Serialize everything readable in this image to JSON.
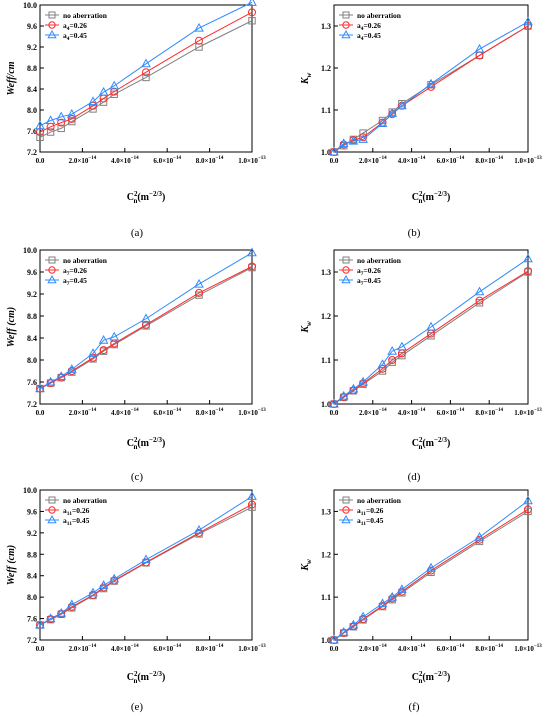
{
  "colors": {
    "no_aberration": "#808080",
    "a026": "#ff2a2a",
    "a045": "#2f8bff",
    "axis": "#000000"
  },
  "chart_data": [
    {
      "type": "line",
      "caption": "(a)",
      "xlabel": "C",
      "xlabel_sup": "2",
      "xlabel_sub": "n",
      "xlabel_unit": "(m",
      "xlabel_unit_sup": "−2/3",
      "xlabel_unit_end": ")",
      "ylabel": "Weff/cm",
      "ylabel_italic": true,
      "xlim": [
        0,
        1e-13
      ],
      "ylim": [
        7.2,
        10.0
      ],
      "xticks": [
        0,
        2e-14,
        4e-14,
        6e-14,
        8e-14,
        1e-13
      ],
      "xticklabels": [
        "0.0",
        "2.0×10",
        "4.0×10",
        "6.0×10",
        "8.0×10",
        "1.0×10"
      ],
      "xtick_exps": [
        "",
        "−14",
        "−14",
        "−14",
        "−14",
        "−13"
      ],
      "yticks": [
        7.2,
        7.6,
        8.0,
        8.4,
        8.8,
        9.2,
        9.6,
        10.0
      ],
      "yticklabels": [
        "7.2",
        "7.6",
        "8.0",
        "8.4",
        "8.8",
        "9.2",
        "9.6",
        "10.0"
      ],
      "x": [
        0,
        5e-15,
        1e-14,
        1.5e-14,
        2.5e-14,
        3e-14,
        3.5e-14,
        5e-14,
        7.5e-14,
        1e-13
      ],
      "legend_pos": "top-left",
      "series": [
        {
          "name": "no aberration",
          "name_sub": "",
          "name_tail": "",
          "marker": "square",
          "color_key": "no_aberration",
          "values": [
            7.48,
            7.58,
            7.65,
            7.78,
            8.02,
            8.15,
            8.3,
            8.62,
            9.2,
            9.7
          ]
        },
        {
          "name": "a",
          "name_sub": "4",
          "name_tail": "=0.26",
          "marker": "circle",
          "color_key": "a026",
          "values": [
            7.58,
            7.68,
            7.76,
            7.83,
            8.08,
            8.22,
            8.35,
            8.72,
            9.32,
            9.86
          ]
        },
        {
          "name": "a",
          "name_sub": "4",
          "name_tail": "=0.45",
          "marker": "triangle",
          "color_key": "a045",
          "values": [
            7.7,
            7.8,
            7.87,
            7.92,
            8.16,
            8.34,
            8.46,
            8.88,
            9.56,
            10.05
          ]
        }
      ]
    },
    {
      "type": "line",
      "caption": "(b)",
      "xlabel": "C",
      "xlabel_sup": "2",
      "xlabel_sub": "n",
      "xlabel_unit": "(m",
      "xlabel_unit_sup": "−2/3",
      "xlabel_unit_end": ")",
      "ylabel": "K",
      "ylabel_sub": "w",
      "ylabel_italic": true,
      "xlim": [
        0,
        1e-13
      ],
      "ylim": [
        1.0,
        1.35
      ],
      "xticks": [
        0,
        2e-14,
        4e-14,
        6e-14,
        8e-14,
        1e-13
      ],
      "xticklabels": [
        "0.0",
        "2.0×10",
        "4.0×10",
        "6.0×10",
        "8.0×10",
        "1.0×10"
      ],
      "xtick_exps": [
        "",
        "−14",
        "−14",
        "−14",
        "−14",
        "−13"
      ],
      "yticks": [
        1.0,
        1.1,
        1.2,
        1.3
      ],
      "yticklabels": [
        "1.0",
        "1.1",
        "1.2",
        "1.3"
      ],
      "x": [
        0,
        5e-15,
        1e-14,
        1.5e-14,
        2.5e-14,
        3e-14,
        3.5e-14,
        5e-14,
        7.5e-14,
        1e-13
      ],
      "legend_pos": "top-left",
      "series": [
        {
          "name": "no aberration",
          "name_sub": "",
          "name_tail": "",
          "marker": "square",
          "color_key": "no_aberration",
          "values": [
            1.0,
            1.015,
            1.03,
            1.045,
            1.075,
            1.095,
            1.115,
            1.16,
            1.23,
            1.3
          ]
        },
        {
          "name": "a",
          "name_sub": "4",
          "name_tail": "=0.26",
          "marker": "circle",
          "color_key": "a026",
          "values": [
            1.0,
            1.018,
            1.028,
            1.035,
            1.07,
            1.09,
            1.11,
            1.155,
            1.23,
            1.3
          ]
        },
        {
          "name": "a",
          "name_sub": "4",
          "name_tail": "=0.45",
          "marker": "triangle",
          "color_key": "a045",
          "values": [
            1.0,
            1.02,
            1.026,
            1.03,
            1.068,
            1.092,
            1.11,
            1.162,
            1.245,
            1.31
          ]
        }
      ]
    },
    {
      "type": "line",
      "caption": "(c)",
      "xlabel": "C",
      "xlabel_sup": "2",
      "xlabel_sub": "n",
      "xlabel_unit": "(m",
      "xlabel_unit_sup": "−2/3",
      "xlabel_unit_end": ")",
      "ylabel": "Weff (cm)",
      "ylabel_italic": true,
      "xlim": [
        0,
        1e-13
      ],
      "ylim": [
        7.2,
        10.0
      ],
      "xticks": [
        0,
        2e-14,
        4e-14,
        6e-14,
        8e-14,
        1e-13
      ],
      "xticklabels": [
        "0.0",
        "2.0×10",
        "4.0×10",
        "6.0×10",
        "8.0×10",
        "1.0×10"
      ],
      "xtick_exps": [
        "",
        "−14",
        "−14",
        "−14",
        "−14",
        "−13"
      ],
      "yticks": [
        7.2,
        7.6,
        8.0,
        8.4,
        8.8,
        9.2,
        9.6,
        10.0
      ],
      "yticklabels": [
        "7.2",
        "7.6",
        "8.0",
        "8.4",
        "8.8",
        "9.2",
        "9.6",
        "10.0"
      ],
      "x": [
        0,
        5e-15,
        1e-14,
        1.5e-14,
        2.5e-14,
        3e-14,
        3.5e-14,
        5e-14,
        7.5e-14,
        1e-13
      ],
      "legend_pos": "top-left",
      "series": [
        {
          "name": "no aberration",
          "name_sub": "",
          "name_tail": "",
          "marker": "square",
          "color_key": "no_aberration",
          "values": [
            7.48,
            7.58,
            7.68,
            7.78,
            8.02,
            8.16,
            8.28,
            8.62,
            9.18,
            9.68
          ]
        },
        {
          "name": "a",
          "name_sub": "7",
          "name_tail": "=0.26",
          "marker": "circle",
          "color_key": "a026",
          "values": [
            7.48,
            7.58,
            7.68,
            7.8,
            8.04,
            8.18,
            8.3,
            8.64,
            9.22,
            9.7
          ]
        },
        {
          "name": "a",
          "name_sub": "7",
          "name_tail": "=0.45",
          "marker": "triangle",
          "color_key": "a045",
          "values": [
            7.48,
            7.6,
            7.7,
            7.83,
            8.12,
            8.36,
            8.42,
            8.75,
            9.38,
            9.95
          ]
        }
      ]
    },
    {
      "type": "line",
      "caption": "(d)",
      "xlabel": "C",
      "xlabel_sup": "2",
      "xlabel_sub": "n",
      "xlabel_unit": "(m",
      "xlabel_unit_sup": "−2/3",
      "xlabel_unit_end": ")",
      "ylabel": "K",
      "ylabel_sub": "w",
      "ylabel_italic": true,
      "xlim": [
        0,
        1e-13
      ],
      "ylim": [
        1.0,
        1.35
      ],
      "xticks": [
        0,
        2e-14,
        4e-14,
        6e-14,
        8e-14,
        1e-13
      ],
      "xticklabels": [
        "0.0",
        "2.0×10",
        "4.0×10",
        "6.0×10",
        "8.0×10",
        "1.0×10"
      ],
      "xtick_exps": [
        "",
        "−14",
        "−14",
        "−14",
        "−14",
        "−13"
      ],
      "yticks": [
        1.0,
        1.1,
        1.2,
        1.3
      ],
      "yticklabels": [
        "1.0",
        "1.1",
        "1.2",
        "1.3"
      ],
      "x": [
        0,
        5e-15,
        1e-14,
        1.5e-14,
        2.5e-14,
        3e-14,
        3.5e-14,
        5e-14,
        7.5e-14,
        1e-13
      ],
      "legend_pos": "top-left",
      "series": [
        {
          "name": "no aberration",
          "name_sub": "",
          "name_tail": "",
          "marker": "square",
          "color_key": "no_aberration",
          "values": [
            1.0,
            1.015,
            1.03,
            1.045,
            1.075,
            1.095,
            1.11,
            1.155,
            1.23,
            1.3
          ]
        },
        {
          "name": "a",
          "name_sub": "7",
          "name_tail": "=0.26",
          "marker": "circle",
          "color_key": "a026",
          "values": [
            1.0,
            1.016,
            1.031,
            1.047,
            1.08,
            1.1,
            1.115,
            1.16,
            1.235,
            1.302
          ]
        },
        {
          "name": "a",
          "name_sub": "7",
          "name_tail": "=0.45",
          "marker": "triangle",
          "color_key": "a045",
          "values": [
            1.0,
            1.018,
            1.034,
            1.05,
            1.09,
            1.12,
            1.13,
            1.175,
            1.255,
            1.33
          ]
        }
      ]
    },
    {
      "type": "line",
      "caption": "(e)",
      "xlabel": "C",
      "xlabel_sup": "2",
      "xlabel_sub": "n",
      "xlabel_unit": "(m",
      "xlabel_unit_sup": "−2/3",
      "xlabel_unit_end": ")",
      "ylabel": "Weff (cm)",
      "ylabel_italic": true,
      "xlim": [
        0,
        1e-13
      ],
      "ylim": [
        7.2,
        10.0
      ],
      "xticks": [
        0,
        2e-14,
        4e-14,
        6e-14,
        8e-14,
        1e-13
      ],
      "xticklabels": [
        "0.0",
        "2.0×10",
        "4.0×10",
        "6.0×10",
        "8.0×10",
        "1.0×10"
      ],
      "xtick_exps": [
        "",
        "−14",
        "−14",
        "−14",
        "−14",
        "−13"
      ],
      "yticks": [
        7.2,
        7.6,
        8.0,
        8.4,
        8.8,
        9.2,
        9.6,
        10.0
      ],
      "yticklabels": [
        "7.2",
        "7.6",
        "8.0",
        "8.4",
        "8.8",
        "9.2",
        "9.6",
        "10.0"
      ],
      "x": [
        0,
        5e-15,
        1e-14,
        1.5e-14,
        2.5e-14,
        3e-14,
        3.5e-14,
        5e-14,
        7.5e-14,
        1e-13
      ],
      "legend_pos": "top-left",
      "series": [
        {
          "name": "no aberration",
          "name_sub": "",
          "name_tail": "",
          "marker": "square",
          "color_key": "no_aberration",
          "values": [
            7.48,
            7.58,
            7.68,
            7.8,
            8.03,
            8.16,
            8.3,
            8.64,
            9.18,
            9.68
          ]
        },
        {
          "name": "a",
          "name_sub": "11",
          "name_tail": "=0.26",
          "marker": "circle",
          "color_key": "a026",
          "values": [
            7.48,
            7.59,
            7.69,
            7.82,
            8.04,
            8.18,
            8.31,
            8.65,
            9.2,
            9.73
          ]
        },
        {
          "name": "a",
          "name_sub": "11",
          "name_tail": "=0.45",
          "marker": "triangle",
          "color_key": "a045",
          "values": [
            7.48,
            7.6,
            7.7,
            7.86,
            8.08,
            8.22,
            8.34,
            8.7,
            9.25,
            9.88
          ]
        }
      ]
    },
    {
      "type": "line",
      "caption": "(f)",
      "xlabel": "C",
      "xlabel_sup": "2",
      "xlabel_sub": "n",
      "xlabel_unit": "(m",
      "xlabel_unit_sup": "−2/3",
      "xlabel_unit_end": ")",
      "ylabel": "K",
      "ylabel_sub": "w",
      "ylabel_italic": true,
      "xlim": [
        0,
        1e-13
      ],
      "ylim": [
        1.0,
        1.35
      ],
      "xticks": [
        0,
        2e-14,
        4e-14,
        6e-14,
        8e-14,
        1e-13
      ],
      "xticklabels": [
        "0.0",
        "2.0×10",
        "4.0×10",
        "6.0×10",
        "8.0×10",
        "1.0×10"
      ],
      "xtick_exps": [
        "",
        "−14",
        "−14",
        "−14",
        "−14",
        "−13"
      ],
      "yticks": [
        1.0,
        1.1,
        1.2,
        1.3
      ],
      "yticklabels": [
        "1.0",
        "1.1",
        "1.2",
        "1.3"
      ],
      "x": [
        0,
        5e-15,
        1e-14,
        1.5e-14,
        2.5e-14,
        3e-14,
        3.5e-14,
        5e-14,
        7.5e-14,
        1e-13
      ],
      "legend_pos": "top-left",
      "series": [
        {
          "name": "no aberration",
          "name_sub": "",
          "name_tail": "",
          "marker": "square",
          "color_key": "no_aberration",
          "values": [
            1.0,
            1.016,
            1.031,
            1.047,
            1.078,
            1.094,
            1.11,
            1.158,
            1.23,
            1.3
          ]
        },
        {
          "name": "a",
          "name_sub": "11",
          "name_tail": "=0.26",
          "marker": "circle",
          "color_key": "a026",
          "values": [
            1.0,
            1.017,
            1.032,
            1.049,
            1.08,
            1.097,
            1.113,
            1.162,
            1.234,
            1.305
          ]
        },
        {
          "name": "a",
          "name_sub": "11",
          "name_tail": "=0.45",
          "marker": "triangle",
          "color_key": "a045",
          "values": [
            1.0,
            1.018,
            1.035,
            1.054,
            1.085,
            1.1,
            1.118,
            1.168,
            1.24,
            1.325
          ]
        }
      ]
    }
  ]
}
